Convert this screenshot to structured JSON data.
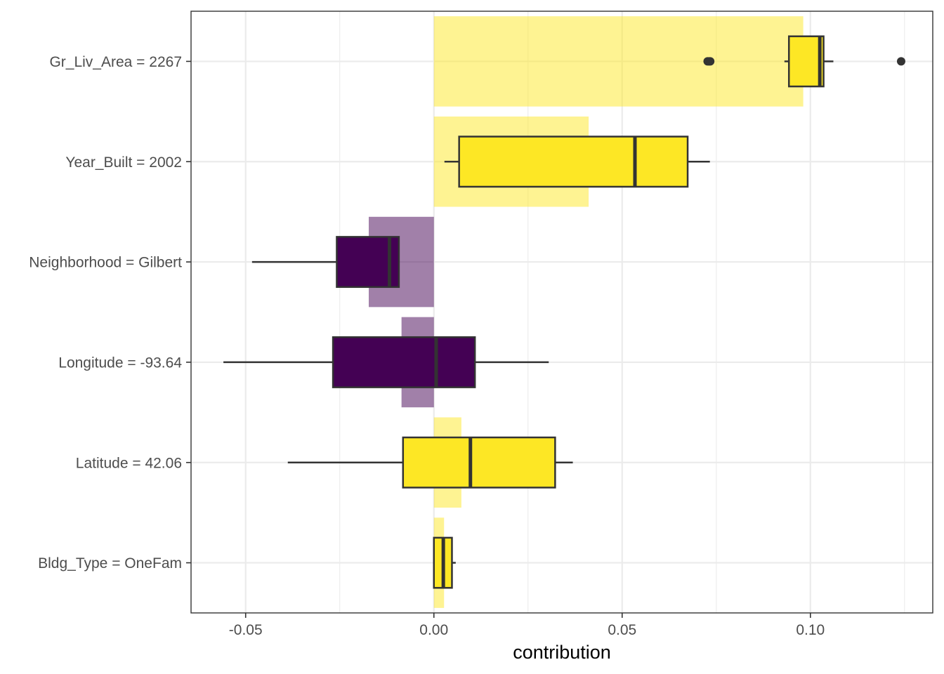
{
  "chart_data": {
    "type": "boxplot-with-bars",
    "title": "",
    "xlabel": "contribution",
    "ylabel": "",
    "xlim": [
      -0.0645,
      0.1325
    ],
    "x_ticks": [
      {
        "value": -0.05,
        "label": "-0.05"
      },
      {
        "value": 0.0,
        "label": "0.00"
      },
      {
        "value": 0.05,
        "label": "0.05"
      },
      {
        "value": 0.1,
        "label": "0.10"
      }
    ],
    "x_minor_ticks": [
      -0.025,
      0.025,
      0.075,
      0.125
    ],
    "grid": true,
    "colors": {
      "positive": "#FDE725",
      "negative": "#440154",
      "bar_opacity": 0.5,
      "box_outline": "#333333",
      "grid": "#EBEBEB",
      "panel_border": "#333333",
      "tick_text": "#4D4D4D"
    },
    "features": [
      {
        "label": "Gr_Liv_Area = 2267",
        "bar": 0.0981,
        "sign": "positive",
        "box": {
          "whisker_low": 0.0931,
          "q1": 0.0943,
          "median": 0.1025,
          "q3": 0.1035,
          "whisker_high": 0.1061
        },
        "outliers": [
          0.0727,
          0.0731,
          0.0734,
          0.1241
        ]
      },
      {
        "label": "Year_Built = 2002",
        "bar": 0.0411,
        "sign": "positive",
        "box": {
          "whisker_low": 0.0028,
          "q1": 0.0067,
          "median": 0.0534,
          "q3": 0.0674,
          "whisker_high": 0.0733
        },
        "outliers": []
      },
      {
        "label": "Neighborhood = Gilbert",
        "bar": -0.0173,
        "sign": "negative",
        "box": {
          "whisker_low": -0.0483,
          "q1": -0.0258,
          "median": -0.0118,
          "q3": -0.0093,
          "whisker_high": -0.0093
        },
        "outliers": []
      },
      {
        "label": "Longitude = -93.64",
        "bar": -0.0086,
        "sign": "negative",
        "box": {
          "whisker_low": -0.0559,
          "q1": -0.0268,
          "median": 0.0006,
          "q3": 0.0109,
          "whisker_high": 0.0305
        },
        "outliers": []
      },
      {
        "label": "Latitude = 42.06",
        "bar": 0.0073,
        "sign": "positive",
        "box": {
          "whisker_low": -0.0388,
          "q1": -0.0082,
          "median": 0.0097,
          "q3": 0.0322,
          "whisker_high": 0.0369
        },
        "outliers": []
      },
      {
        "label": "Bldg_Type = OneFam",
        "bar": 0.0027,
        "sign": "positive",
        "box": {
          "whisker_low": 0.0,
          "q1": 0.0,
          "median": 0.0025,
          "q3": 0.0048,
          "whisker_high": 0.0058
        },
        "outliers": []
      }
    ]
  }
}
